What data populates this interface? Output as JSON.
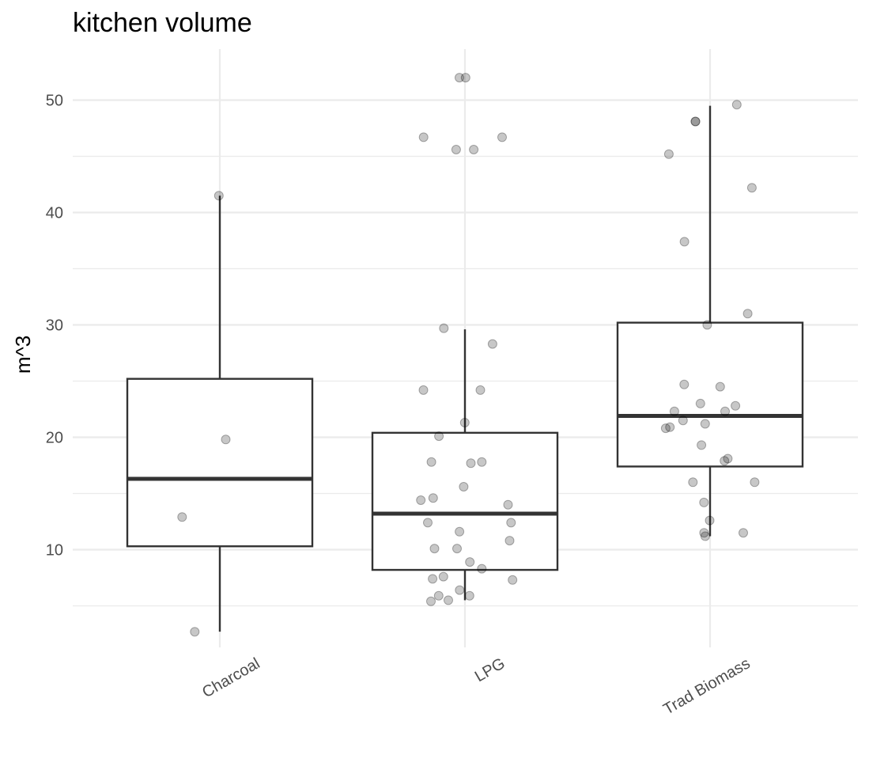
{
  "chart_data": {
    "type": "box",
    "title": "kitchen volume",
    "xlabel": "",
    "ylabel": "m^3",
    "ylim": [
      0.5,
      54.5
    ],
    "yticks": [
      10,
      20,
      30,
      40,
      50
    ],
    "grid": true,
    "categories": [
      "Charcoal",
      "LPG",
      "Trad Biomass"
    ],
    "boxes": [
      {
        "category": "Charcoal",
        "whisker_low": 2.7,
        "q1": 10.3,
        "median": 16.3,
        "q3": 25.2,
        "whisker_high": 41.5
      },
      {
        "category": "LPG",
        "whisker_low": 5.5,
        "q1": 8.2,
        "median": 13.2,
        "q3": 20.4,
        "whisker_high": 29.6
      },
      {
        "category": "Trad Biomass",
        "whisker_low": 11.2,
        "q1": 17.4,
        "median": 21.9,
        "q3": 30.2,
        "whisker_high": 49.5
      }
    ],
    "points": [
      {
        "category": "Charcoal",
        "values": [
          41.5,
          19.8,
          12.9,
          2.7
        ]
      },
      {
        "category": "LPG",
        "values": [
          52.0,
          52.0,
          46.7,
          46.7,
          45.6,
          45.6,
          29.7,
          28.3,
          24.2,
          24.2,
          21.3,
          20.1,
          17.8,
          17.8,
          17.7,
          15.6,
          14.6,
          14.4,
          14.0,
          12.4,
          12.4,
          11.6,
          10.8,
          10.1,
          10.1,
          8.9,
          8.3,
          7.6,
          7.4,
          7.3,
          6.4,
          5.9,
          5.9,
          5.5,
          5.4
        ]
      },
      {
        "category": "Trad Biomass",
        "values": [
          49.6,
          48.1,
          48.1,
          45.2,
          42.2,
          37.4,
          31.0,
          30.0,
          24.7,
          24.5,
          23.0,
          22.8,
          22.3,
          22.3,
          21.5,
          21.2,
          20.9,
          20.8,
          19.3,
          18.1,
          17.9,
          16.0,
          16.0,
          14.2,
          12.6,
          11.5,
          11.5,
          11.2
        ]
      }
    ]
  }
}
